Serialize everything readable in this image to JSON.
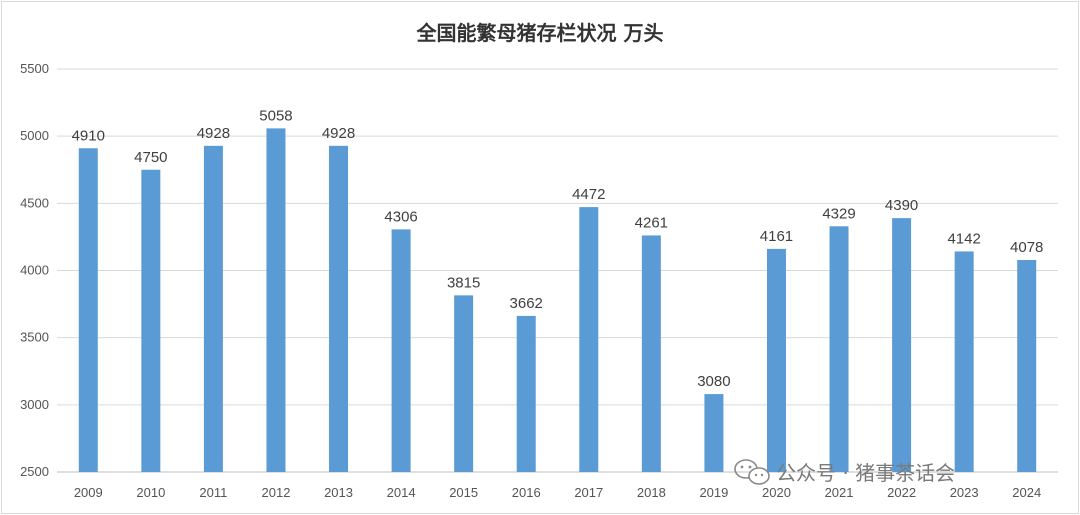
{
  "chart_data": {
    "type": "bar",
    "title": "全国能繁母猪存栏状况  万头",
    "xlabel": "",
    "ylabel": "",
    "categories": [
      "2009",
      "2010",
      "2011",
      "2012",
      "2013",
      "2014",
      "2015",
      "2016",
      "2017",
      "2018",
      "2019",
      "2020",
      "2021",
      "2022",
      "2023",
      "2024"
    ],
    "values": [
      4910,
      4750,
      4928,
      5058,
      4928,
      4306,
      3815,
      3662,
      4472,
      4261,
      3080,
      4161,
      4329,
      4390,
      4142,
      4078
    ],
    "ylim": [
      2500,
      5500
    ],
    "yticks": [
      2500,
      3000,
      3500,
      4000,
      4500,
      5000,
      5500
    ],
    "grid": true,
    "legend": "none",
    "bar_color": "#5b9bd5",
    "data_labels": true
  },
  "watermark": {
    "text": "公众号 · 猪事茶话会",
    "icon": "wechat-icon"
  }
}
